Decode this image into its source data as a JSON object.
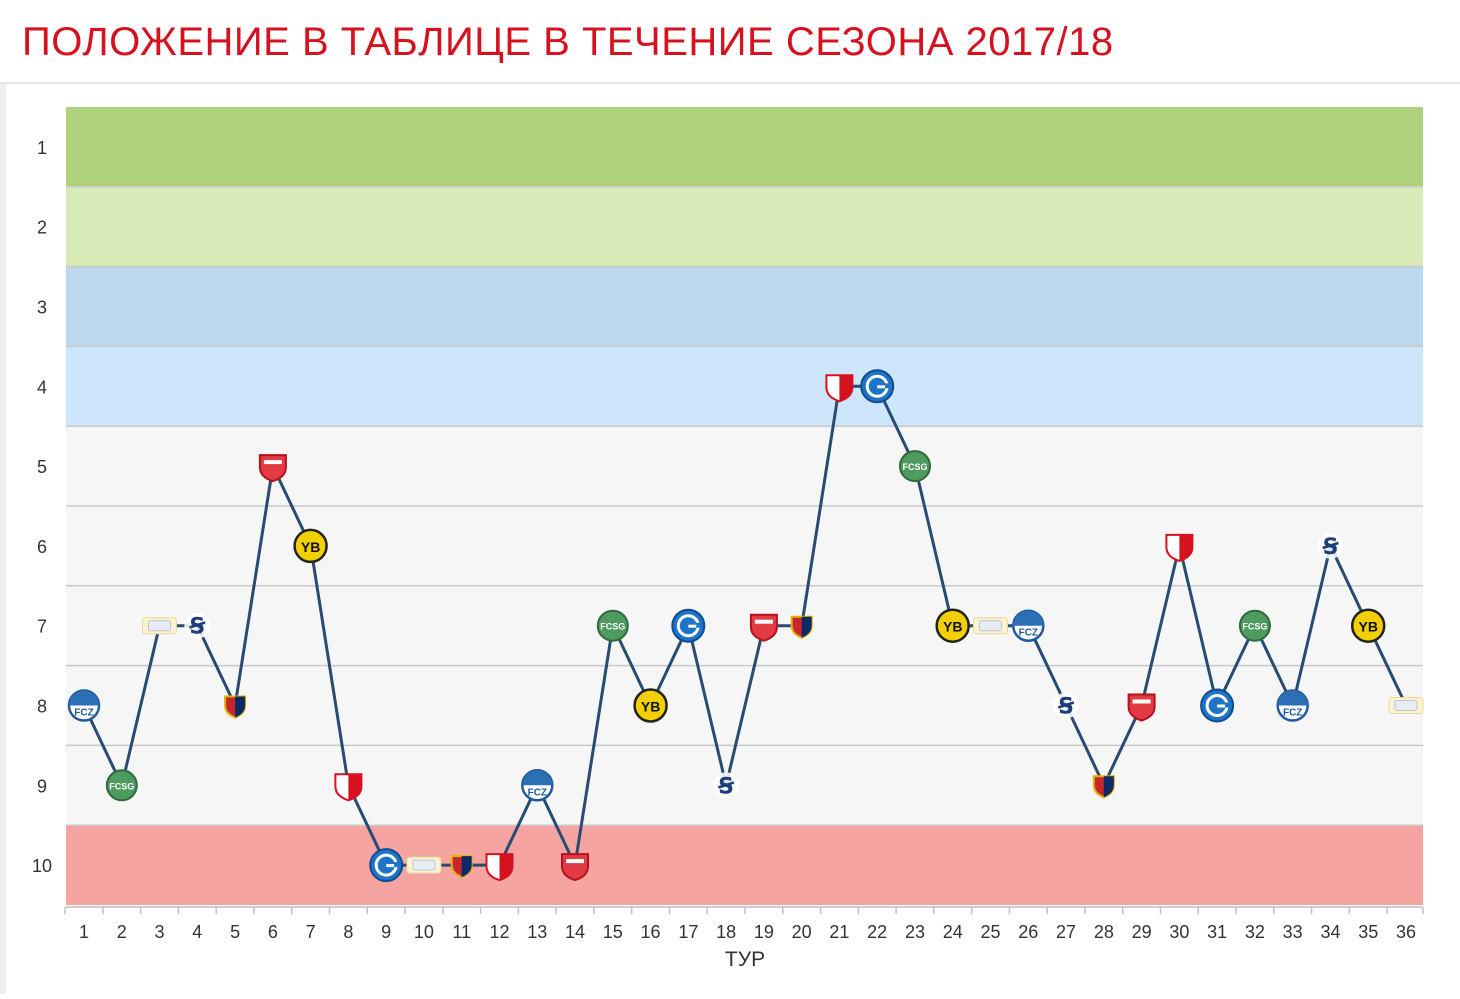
{
  "header": {
    "title": "ПОЛОЖЕНИЕ В ТАБЛИЦЕ В ТЕЧЕНИЕ СЕЗОНА 2017/18"
  },
  "chart_data": {
    "type": "line",
    "xlabel": "ТУР",
    "ylabel": "",
    "y_reversed": true,
    "ylim": [
      1,
      10
    ],
    "xlim": [
      1,
      36
    ],
    "grid": true,
    "y_ticks": [
      "1",
      "2",
      "3",
      "4",
      "5",
      "6",
      "7",
      "8",
      "9",
      "10"
    ],
    "x": [
      1,
      2,
      3,
      4,
      5,
      6,
      7,
      8,
      9,
      10,
      11,
      12,
      13,
      14,
      15,
      16,
      17,
      18,
      19,
      20,
      21,
      22,
      23,
      24,
      25,
      26,
      27,
      28,
      29,
      30,
      31,
      32,
      33,
      34,
      35,
      36
    ],
    "series": [
      {
        "values": [
          8,
          9,
          7,
          7,
          8,
          5,
          6,
          9,
          10,
          10,
          10,
          10,
          9,
          10,
          7,
          8,
          7,
          9,
          7,
          7,
          4,
          4,
          5,
          7,
          7,
          7,
          8,
          9,
          8,
          6,
          8,
          7,
          8,
          6,
          7,
          8
        ]
      }
    ],
    "opponents": [
      "ZUR",
      "STG",
      "LUG",
      "LAU",
      "BAS",
      "THU",
      "YB",
      "SIO",
      "GC",
      "LUG",
      "BAS",
      "SIO",
      "ZUR",
      "THU",
      "STG",
      "YB",
      "GC",
      "LAU",
      "THU",
      "BAS",
      "SIO",
      "GC",
      "STG",
      "YB",
      "LUG",
      "ZUR",
      "LAU",
      "BAS",
      "THU",
      "SIO",
      "GC",
      "STG",
      "ZUR",
      "LAU",
      "YB",
      "LUG"
    ],
    "bands": [
      {
        "rank": 1,
        "color": "#aed17c"
      },
      {
        "rank": 2,
        "color": "#d8eab6"
      },
      {
        "rank": 3,
        "color": "#bcd8ef"
      },
      {
        "rank": 4,
        "color": "#cde6fb"
      },
      {
        "rank": 5,
        "color": "#f6f6f6"
      },
      {
        "rank": 6,
        "color": "#f6f6f6"
      },
      {
        "rank": 7,
        "color": "#f6f6f6"
      },
      {
        "rank": 8,
        "color": "#f6f6f6"
      },
      {
        "rank": 9,
        "color": "#f6f6f6"
      },
      {
        "rank": 10,
        "color": "#f5a4a2"
      }
    ],
    "line_color": "#284b72",
    "title_color": "#d7121f",
    "team_icons": {
      "ZUR": {
        "name": "zurich-badge-icon",
        "fill": "#ffffff",
        "stroke": "#1f5a9e",
        "letter": "Z",
        "ink": "#1f5a9e"
      },
      "STG": {
        "name": "st-gallen-badge-icon",
        "fill": "#4f9a5f",
        "stroke": "#2f6b3c",
        "letter": "S",
        "ink": "#ffffff"
      },
      "LUG": {
        "name": "lugano-badge-icon",
        "fill": "#e9edf3",
        "stroke": "#b8c6d8",
        "letter": "L",
        "ink": "#6b8bb0"
      },
      "LAU": {
        "name": "lausanne-badge-icon",
        "fill": "#ffffff",
        "stroke": "#ffffff",
        "letter": "LS",
        "ink": "#1c3e7a"
      },
      "BAS": {
        "name": "basel-badge-icon",
        "fill": "#c8262d",
        "stroke": "#e0b400",
        "letter": "B",
        "ink": "#0d2a66"
      },
      "THU": {
        "name": "thun-badge-icon",
        "fill": "#e33b44",
        "stroke": "#b5121b",
        "letter": "T",
        "ink": "#ffffff"
      },
      "YB": {
        "name": "young-boys-badge-icon",
        "fill": "#f2cf00",
        "stroke": "#222222",
        "letter": "YB",
        "ink": "#111111"
      },
      "SIO": {
        "name": "sion-badge-icon",
        "fill": "#ffffff",
        "stroke": "#d7121f",
        "letter": "S",
        "ink": "#d7121f"
      },
      "GC": {
        "name": "grasshoppers-badge-icon",
        "fill": "#1e74c6",
        "stroke": "#0e4f91",
        "letter": "G",
        "ink": "#ffffff"
      }
    }
  }
}
